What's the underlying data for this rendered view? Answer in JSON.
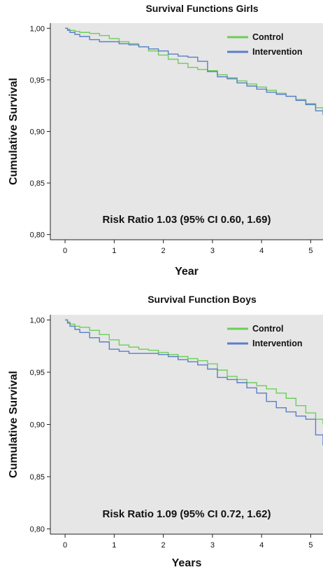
{
  "chart_data": [
    {
      "type": "line",
      "title": "Survival Functions Girls",
      "xlabel": "Year",
      "ylabel": "Cumulative Survival",
      "xlim": [
        -0.3,
        5.25
      ],
      "ylim": [
        0.795,
        1.005
      ],
      "xticks": [
        0,
        1,
        2,
        3,
        4,
        5
      ],
      "xtick_labels": [
        "0",
        "1",
        "2",
        "3",
        "4",
        "5"
      ],
      "yticks": [
        1.0,
        0.95,
        0.9,
        0.85,
        0.8
      ],
      "ytick_labels": [
        "1,00",
        "0,95",
        "0,90",
        "0,85",
        "0,80"
      ],
      "grid": false,
      "legend_position": "top-right",
      "annotation": "Risk Ratio 1.03 (95% CI 0.60, 1.69)",
      "colors": {
        "Control": "#6ccf57",
        "Intervention": "#5b7ec9"
      },
      "series": [
        {
          "name": "Control",
          "color": "#6ccf57",
          "x": [
            0.0,
            0.05,
            0.1,
            0.2,
            0.3,
            0.5,
            0.7,
            0.9,
            1.1,
            1.3,
            1.5,
            1.7,
            1.9,
            2.1,
            2.3,
            2.5,
            2.7,
            2.9,
            3.1,
            3.3,
            3.5,
            3.7,
            3.9,
            4.1,
            4.3,
            4.5,
            4.7,
            4.9,
            5.1,
            5.25
          ],
          "y": [
            1.0,
            0.999,
            0.998,
            0.997,
            0.996,
            0.995,
            0.993,
            0.99,
            0.987,
            0.985,
            0.982,
            0.978,
            0.974,
            0.97,
            0.966,
            0.962,
            0.96,
            0.959,
            0.955,
            0.952,
            0.949,
            0.946,
            0.943,
            0.94,
            0.937,
            0.934,
            0.931,
            0.927,
            0.923,
            0.921
          ]
        },
        {
          "name": "Intervention",
          "color": "#5b7ec9",
          "x": [
            0.0,
            0.05,
            0.1,
            0.2,
            0.3,
            0.5,
            0.7,
            0.9,
            1.1,
            1.3,
            1.5,
            1.7,
            1.9,
            2.1,
            2.3,
            2.5,
            2.7,
            2.9,
            3.1,
            3.3,
            3.5,
            3.7,
            3.9,
            4.1,
            4.3,
            4.5,
            4.7,
            4.9,
            5.1,
            5.25
          ],
          "y": [
            1.0,
            0.998,
            0.996,
            0.994,
            0.992,
            0.989,
            0.987,
            0.987,
            0.985,
            0.984,
            0.982,
            0.98,
            0.978,
            0.975,
            0.973,
            0.972,
            0.968,
            0.958,
            0.953,
            0.951,
            0.947,
            0.944,
            0.941,
            0.938,
            0.936,
            0.934,
            0.93,
            0.926,
            0.92,
            0.916
          ]
        }
      ]
    },
    {
      "type": "line",
      "title": "Survival Function Boys",
      "xlabel": "Years",
      "ylabel": "Cumulative Survival",
      "xlim": [
        -0.3,
        5.25
      ],
      "ylim": [
        0.795,
        1.005
      ],
      "xticks": [
        0,
        1,
        2,
        3,
        4,
        5
      ],
      "xtick_labels": [
        "0",
        "1",
        "2",
        "3",
        "4",
        "5"
      ],
      "yticks": [
        1.0,
        0.95,
        0.9,
        0.85,
        0.8
      ],
      "ytick_labels": [
        "1,00",
        "0,95",
        "0,90",
        "0,85",
        "0,80"
      ],
      "grid": false,
      "legend_position": "top-right",
      "annotation": "Risk Ratio 1.09 (95% CI 0.72, 1.62)",
      "colors": {
        "Control": "#6ccf57",
        "Intervention": "#5b7ec9"
      },
      "series": [
        {
          "name": "Control",
          "color": "#6ccf57",
          "x": [
            0.0,
            0.05,
            0.1,
            0.2,
            0.3,
            0.5,
            0.7,
            0.9,
            1.1,
            1.3,
            1.5,
            1.7,
            1.9,
            2.1,
            2.3,
            2.5,
            2.7,
            2.9,
            3.1,
            3.3,
            3.5,
            3.7,
            3.9,
            4.1,
            4.3,
            4.5,
            4.7,
            4.9,
            5.1,
            5.25
          ],
          "y": [
            1.0,
            0.998,
            0.996,
            0.994,
            0.993,
            0.99,
            0.986,
            0.981,
            0.976,
            0.974,
            0.972,
            0.971,
            0.969,
            0.967,
            0.965,
            0.963,
            0.961,
            0.958,
            0.952,
            0.946,
            0.943,
            0.94,
            0.937,
            0.934,
            0.93,
            0.925,
            0.918,
            0.911,
            0.905,
            0.9
          ]
        },
        {
          "name": "Intervention",
          "color": "#5b7ec9",
          "x": [
            0.0,
            0.05,
            0.1,
            0.2,
            0.3,
            0.5,
            0.7,
            0.9,
            1.1,
            1.3,
            1.5,
            1.7,
            1.9,
            2.1,
            2.3,
            2.5,
            2.7,
            2.9,
            3.1,
            3.3,
            3.5,
            3.7,
            3.9,
            4.1,
            4.3,
            4.5,
            4.7,
            4.9,
            5.1,
            5.25
          ],
          "y": [
            1.0,
            0.997,
            0.994,
            0.991,
            0.988,
            0.983,
            0.979,
            0.972,
            0.97,
            0.968,
            0.968,
            0.968,
            0.967,
            0.965,
            0.962,
            0.96,
            0.957,
            0.953,
            0.945,
            0.943,
            0.94,
            0.935,
            0.93,
            0.922,
            0.916,
            0.912,
            0.908,
            0.905,
            0.89,
            0.88
          ]
        }
      ]
    }
  ]
}
